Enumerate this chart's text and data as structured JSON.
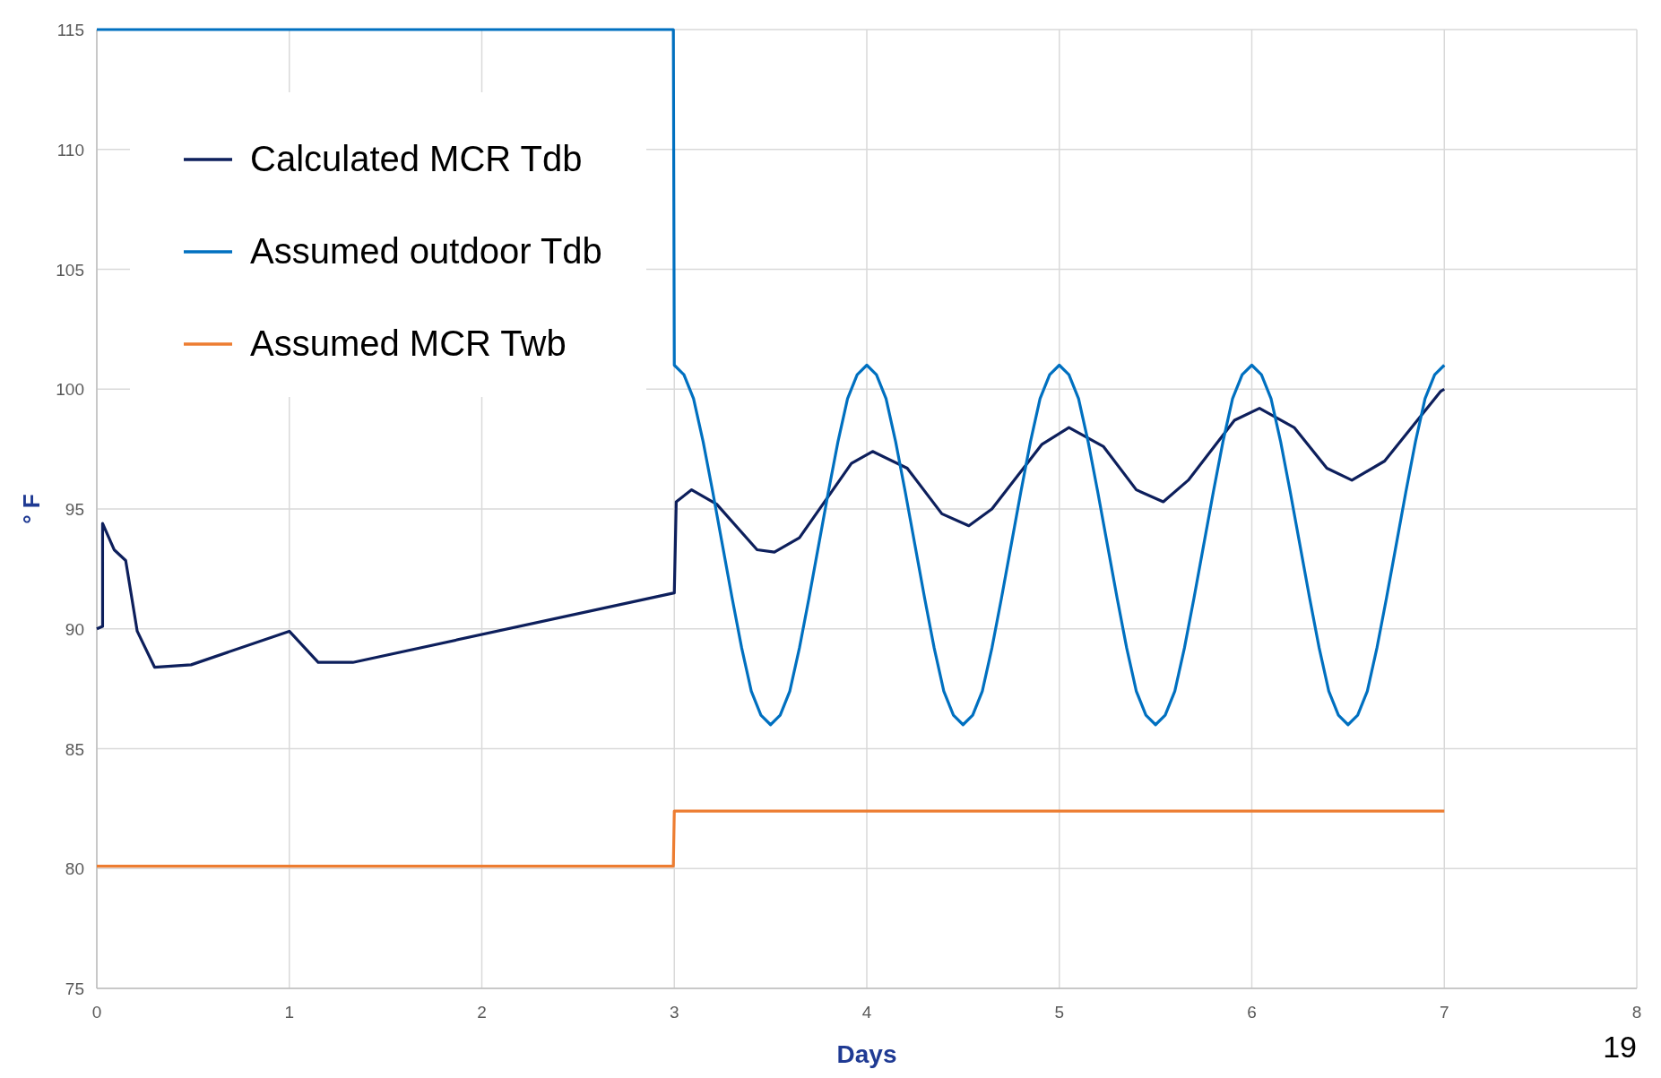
{
  "chart_data": {
    "type": "line",
    "xlabel": "Days",
    "ylabel": "° F",
    "xlim": [
      0,
      8
    ],
    "ylim": [
      75,
      115
    ],
    "xticks": [
      0,
      1,
      2,
      3,
      4,
      5,
      6,
      7,
      8
    ],
    "yticks": [
      75,
      80,
      85,
      90,
      95,
      100,
      105,
      110,
      115
    ],
    "grid": true,
    "legend": "top left",
    "annotations": [
      "19"
    ],
    "series": [
      {
        "name": "Calculated MCR Tdb",
        "color": "#0d1f5c",
        "x": [
          0,
          0.03,
          0.03,
          0.09,
          0.15,
          0.21,
          0.3,
          0.49,
          1.0,
          1.15,
          1.33,
          3.0,
          3.01,
          3.09,
          3.22,
          3.43,
          3.52,
          3.65,
          3.92,
          4.03,
          4.21,
          4.39,
          4.53,
          4.65,
          4.91,
          5.05,
          5.23,
          5.4,
          5.54,
          5.67,
          5.91,
          6.04,
          6.22,
          6.39,
          6.52,
          6.69,
          6.98,
          7.0
        ],
        "values": [
          90.0,
          90.1,
          94.4,
          93.3,
          92.85,
          89.9,
          88.4,
          88.5,
          89.9,
          88.6,
          88.6,
          91.5,
          95.3,
          95.8,
          95.2,
          93.3,
          93.2,
          93.8,
          96.9,
          97.4,
          96.7,
          94.8,
          94.3,
          95.0,
          97.7,
          98.4,
          97.6,
          95.8,
          95.3,
          96.2,
          98.7,
          99.2,
          98.4,
          96.7,
          96.2,
          97.0,
          99.9,
          100.0
        ]
      },
      {
        "name": "Assumed outdoor Tdb",
        "color": "#0070c0",
        "x": [
          0,
          2.995,
          3,
          3.05,
          3.1,
          3.15,
          3.2,
          3.25,
          3.3,
          3.35,
          3.4,
          3.45,
          3.5,
          3.55,
          3.6,
          3.65,
          3.7,
          3.75,
          3.8,
          3.85,
          3.9,
          3.95,
          4,
          4.05,
          4.1,
          4.15,
          4.2,
          4.25,
          4.3,
          4.35,
          4.4,
          4.45,
          4.5,
          4.55,
          4.6,
          4.65,
          4.7,
          4.75,
          4.8,
          4.85,
          4.9,
          4.95,
          5,
          5.05,
          5.1,
          5.15,
          5.2,
          5.25,
          5.3,
          5.35,
          5.4,
          5.45,
          5.5,
          5.55,
          5.6,
          5.65,
          5.7,
          5.75,
          5.8,
          5.85,
          5.9,
          5.95,
          6,
          6.05,
          6.1,
          6.15,
          6.2,
          6.25,
          6.3,
          6.35,
          6.4,
          6.45,
          6.5,
          6.55,
          6.6,
          6.65,
          6.7,
          6.75,
          6.8,
          6.85,
          6.9,
          6.95,
          7
        ],
        "values": [
          115,
          115,
          101,
          100.6,
          99.6,
          97.8,
          95.7,
          93.5,
          91.3,
          89.2,
          87.4,
          86.4,
          86.0,
          86.4,
          87.4,
          89.2,
          91.3,
          93.5,
          95.7,
          97.8,
          99.6,
          100.6,
          101,
          100.6,
          99.6,
          97.8,
          95.7,
          93.5,
          91.3,
          89.2,
          87.4,
          86.4,
          86.0,
          86.4,
          87.4,
          89.2,
          91.3,
          93.5,
          95.7,
          97.8,
          99.6,
          100.6,
          101,
          100.6,
          99.6,
          97.8,
          95.7,
          93.5,
          91.3,
          89.2,
          87.4,
          86.4,
          86.0,
          86.4,
          87.4,
          89.2,
          91.3,
          93.5,
          95.7,
          97.8,
          99.6,
          100.6,
          101,
          100.6,
          99.6,
          97.8,
          95.7,
          93.5,
          91.3,
          89.2,
          87.4,
          86.4,
          86.0,
          86.4,
          87.4,
          89.2,
          91.3,
          93.5,
          95.7,
          97.8,
          99.6,
          100.6,
          101
        ]
      },
      {
        "name": "Assumed MCR Twb",
        "color": "#ed7d31",
        "x": [
          0,
          2.995,
          3.0,
          7.0
        ],
        "values": [
          80.1,
          80.1,
          82.4,
          82.4
        ]
      }
    ]
  }
}
